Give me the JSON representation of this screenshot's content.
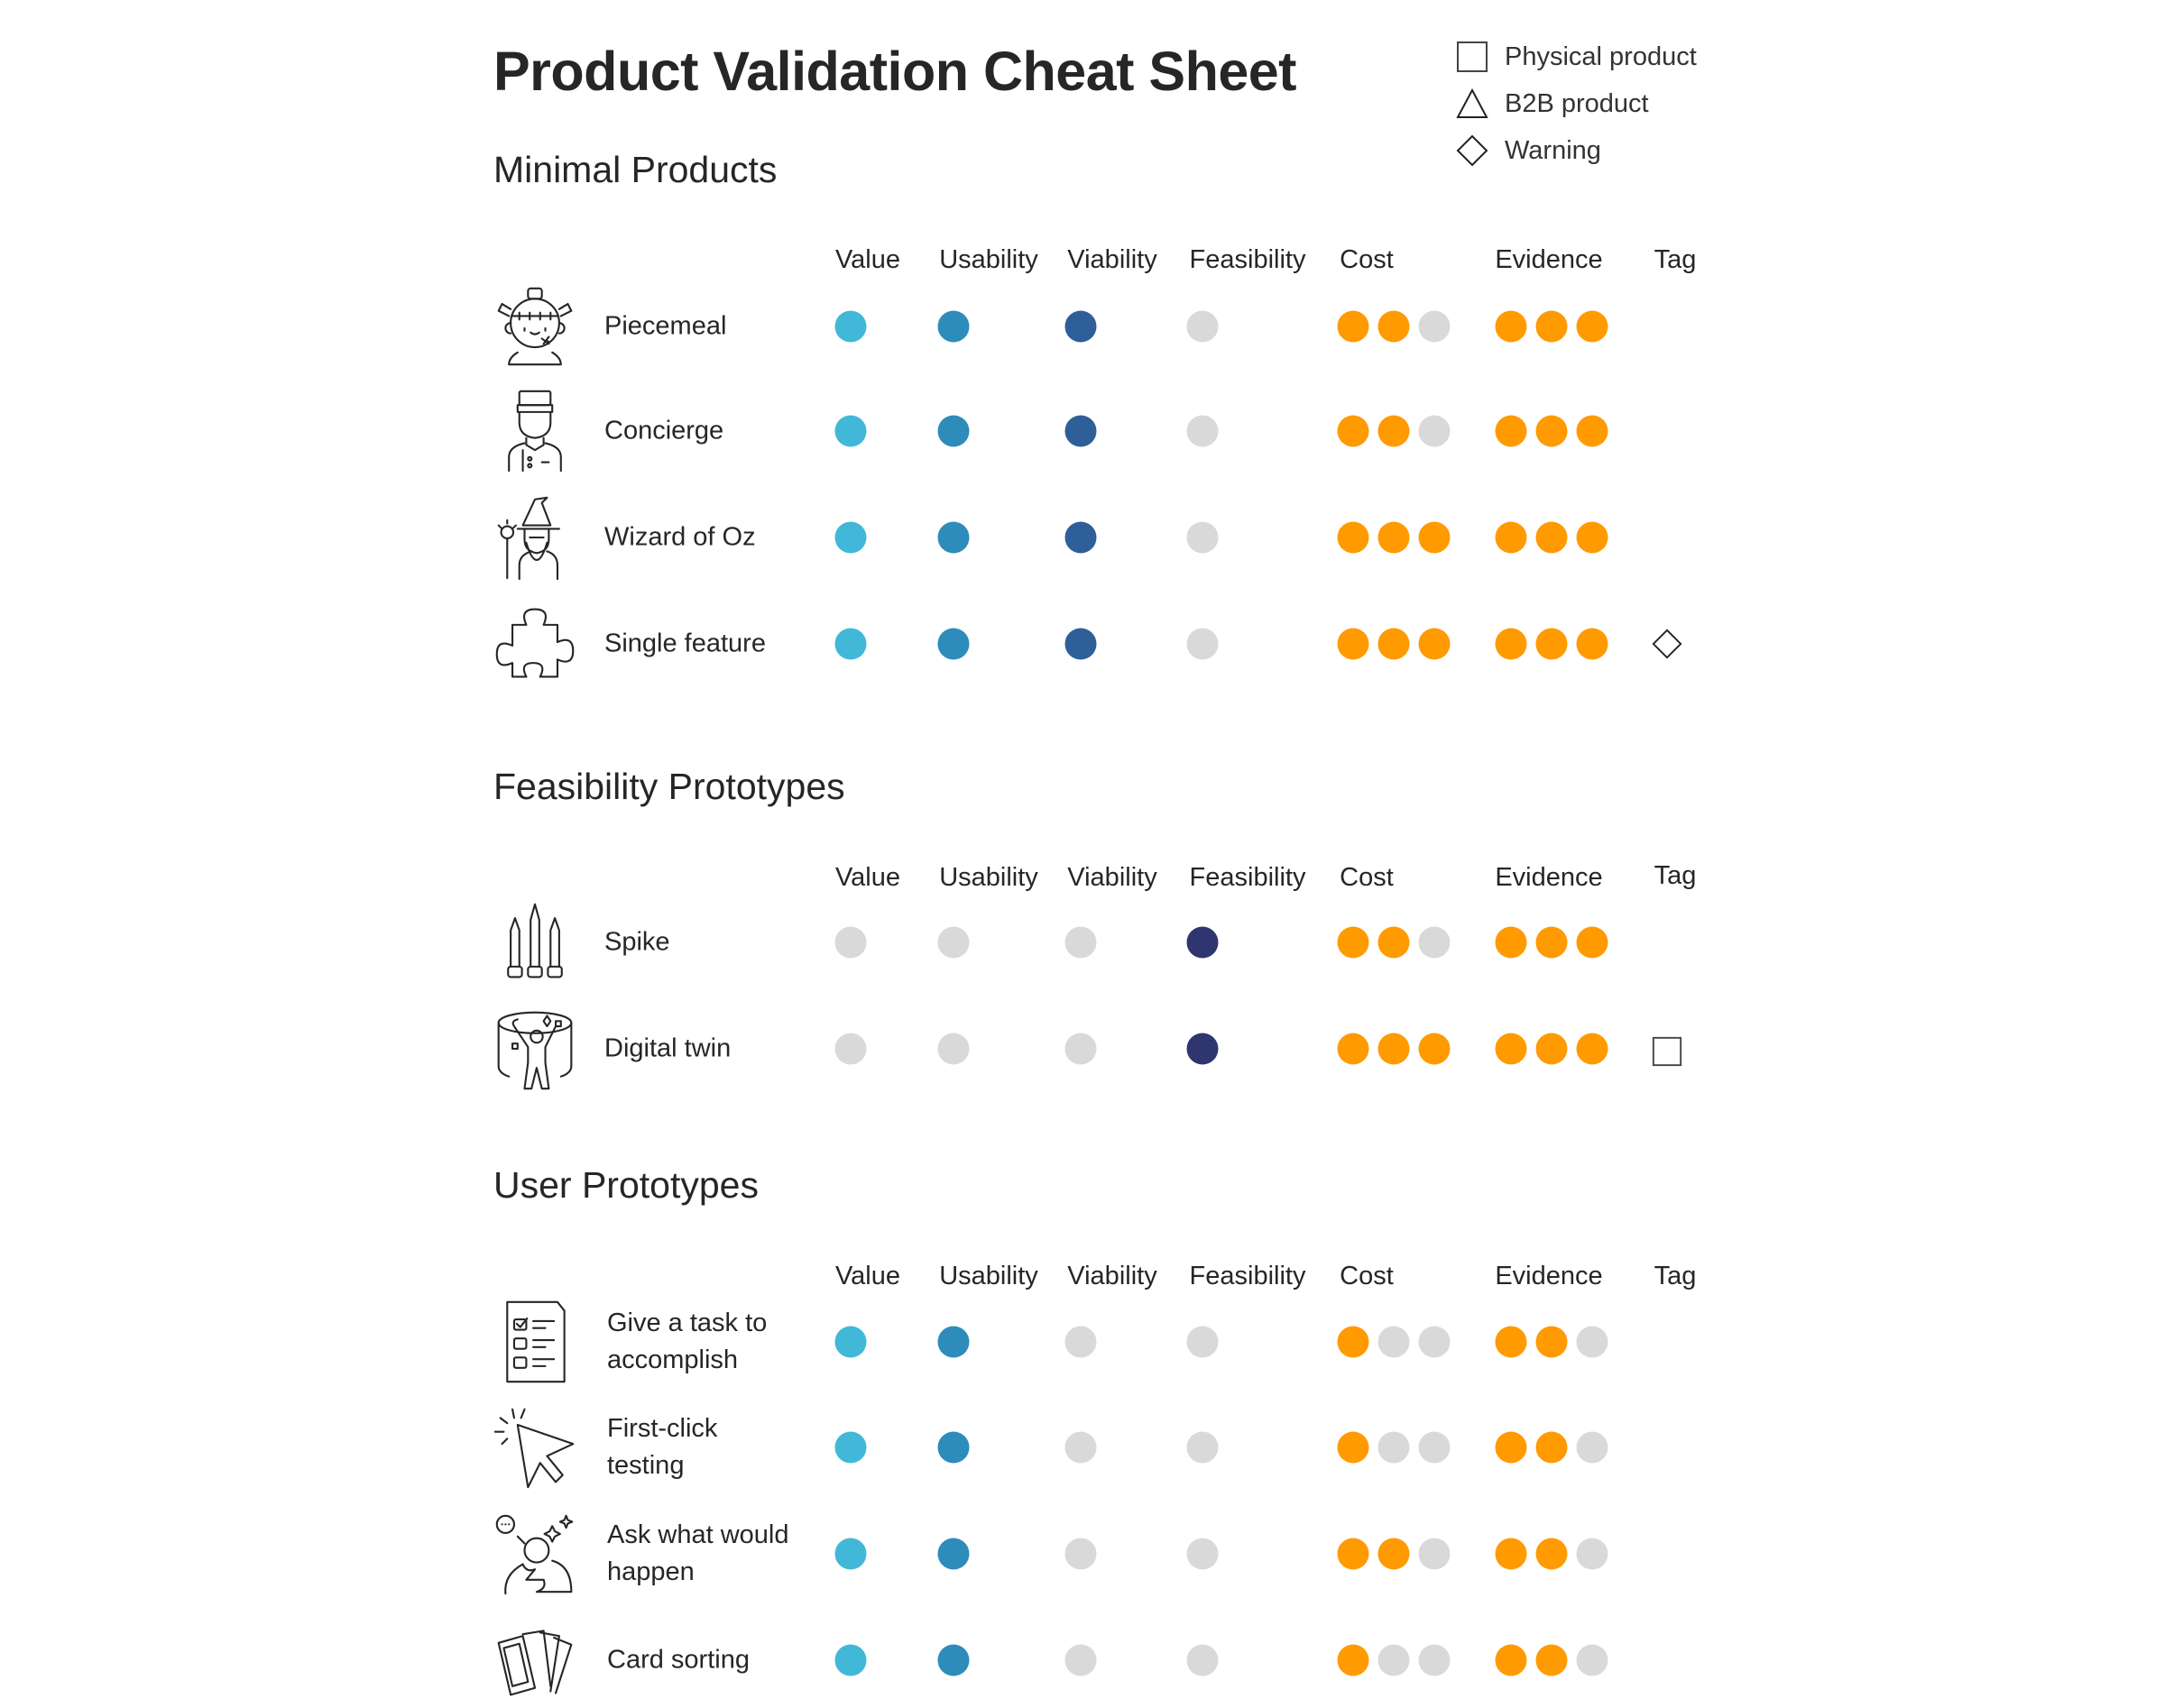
{
  "title": "Product Validation Cheat Sheet",
  "legend": [
    {
      "shape": "square-icon",
      "label": "Physical product"
    },
    {
      "shape": "triangle-icon",
      "label": "B2B product"
    },
    {
      "shape": "diamond-icon",
      "label": "Warning"
    }
  ],
  "colors": {
    "value": "#41b8d8",
    "usability": "#2d8cba",
    "viability": "#2e5f99",
    "feasibility": "#2f356e",
    "empty": "#d9d9d9",
    "cost_evidence": "#ff9a00"
  },
  "columns": [
    "Value",
    "Usability",
    "Viability",
    "Feasibility",
    "Cost",
    "Evidence",
    "Tag"
  ],
  "sections": [
    {
      "title": "Minimal Products",
      "rows": [
        {
          "icon": "frankenstein-icon",
          "label": "Piecemeal",
          "value": true,
          "usability": true,
          "viability": true,
          "feasibility": false,
          "cost": 2,
          "evidence": 3,
          "tag": ""
        },
        {
          "icon": "concierge-icon",
          "label": "Concierge",
          "value": true,
          "usability": true,
          "viability": true,
          "feasibility": false,
          "cost": 2,
          "evidence": 3,
          "tag": ""
        },
        {
          "icon": "wizard-icon",
          "label": "Wizard of Oz",
          "value": true,
          "usability": true,
          "viability": true,
          "feasibility": false,
          "cost": 3,
          "evidence": 3,
          "tag": ""
        },
        {
          "icon": "puzzle-piece-icon",
          "label": "Single feature",
          "value": true,
          "usability": true,
          "viability": true,
          "feasibility": false,
          "cost": 3,
          "evidence": 3,
          "tag": "diamond"
        }
      ]
    },
    {
      "title": "Feasibility Prototypes",
      "rows": [
        {
          "icon": "spikes-icon",
          "label": "Spike",
          "value": false,
          "usability": false,
          "viability": false,
          "feasibility": true,
          "cost": 2,
          "evidence": 3,
          "tag": ""
        },
        {
          "icon": "digital-twin-icon",
          "label": "Digital twin",
          "value": false,
          "usability": false,
          "viability": false,
          "feasibility": true,
          "cost": 3,
          "evidence": 3,
          "tag": "square"
        }
      ]
    },
    {
      "title": "User Prototypes",
      "rows": [
        {
          "icon": "checklist-icon",
          "label": "Give a task to accomplish",
          "label_lines": [
            "Give a task to",
            "accomplish"
          ],
          "value": true,
          "usability": true,
          "viability": false,
          "feasibility": false,
          "cost": 1,
          "evidence": 2,
          "tag": ""
        },
        {
          "icon": "cursor-click-icon",
          "label": "First-click testing",
          "label_lines": [
            "First-click",
            "testing"
          ],
          "value": true,
          "usability": true,
          "viability": false,
          "feasibility": false,
          "cost": 1,
          "evidence": 2,
          "tag": ""
        },
        {
          "icon": "thinking-person-icon",
          "label": "Ask what would happen",
          "label_lines": [
            "Ask what would",
            "happen"
          ],
          "value": true,
          "usability": true,
          "viability": false,
          "feasibility": false,
          "cost": 2,
          "evidence": 2,
          "tag": ""
        },
        {
          "icon": "cards-icon",
          "label": "Card sorting",
          "value": true,
          "usability": true,
          "viability": false,
          "feasibility": false,
          "cost": 1,
          "evidence": 2,
          "tag": ""
        }
      ]
    }
  ]
}
